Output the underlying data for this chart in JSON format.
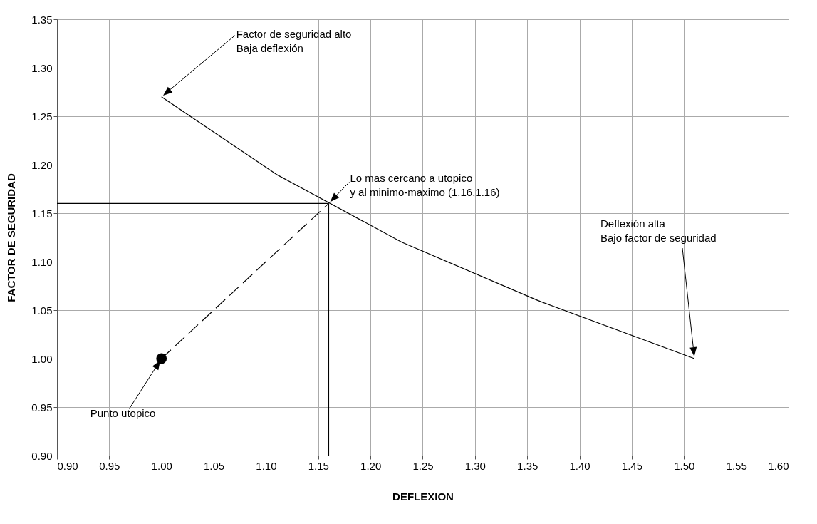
{
  "chart_data": {
    "type": "line",
    "xlabel": "DEFLEXION",
    "ylabel": "FACTOR DE SEGURIDAD",
    "xlim": [
      0.9,
      1.6
    ],
    "ylim": [
      0.9,
      1.35
    ],
    "xticks": [
      {
        "value": 0.9,
        "label": "0.90"
      },
      {
        "value": 0.95,
        "label": "0.95"
      },
      {
        "value": 1.0,
        "label": "1.00"
      },
      {
        "value": 1.05,
        "label": "1.05"
      },
      {
        "value": 1.1,
        "label": "1.10"
      },
      {
        "value": 1.15,
        "label": "1.15"
      },
      {
        "value": 1.2,
        "label": "1.20"
      },
      {
        "value": 1.25,
        "label": "1.25"
      },
      {
        "value": 1.3,
        "label": "1.30"
      },
      {
        "value": 1.35,
        "label": "1.35"
      },
      {
        "value": 1.4,
        "label": "1.40"
      },
      {
        "value": 1.45,
        "label": "1.45"
      },
      {
        "value": 1.5,
        "label": "1.50"
      },
      {
        "value": 1.55,
        "label": "1.55"
      },
      {
        "value": 1.6,
        "label": "1.60"
      }
    ],
    "yticks": [
      {
        "value": 0.9,
        "label": "0.90"
      },
      {
        "value": 0.95,
        "label": "0.95"
      },
      {
        "value": 1.0,
        "label": "1.00"
      },
      {
        "value": 1.05,
        "label": "1.05"
      },
      {
        "value": 1.1,
        "label": "1.10"
      },
      {
        "value": 1.15,
        "label": "1.15"
      },
      {
        "value": 1.2,
        "label": "1.20"
      },
      {
        "value": 1.25,
        "label": "1.25"
      },
      {
        "value": 1.3,
        "label": "1.30"
      },
      {
        "value": 1.35,
        "label": "1.35"
      }
    ],
    "grid": true,
    "series": [
      {
        "color": "#000000",
        "line_style": "solid",
        "x": [
          1.0,
          1.11,
          1.23,
          1.36,
          1.51
        ],
        "values": [
          1.27,
          1.19,
          1.12,
          1.06,
          1.0
        ]
      },
      {
        "color": "#000000",
        "line_style": "dashed",
        "x": [
          1.0,
          1.16
        ],
        "values": [
          1.0,
          1.16
        ]
      },
      {
        "color": "#000000",
        "line_style": "solid",
        "x": [
          0.9,
          1.16
        ],
        "values": [
          1.16,
          1.16
        ]
      },
      {
        "color": "#000000",
        "line_style": "solid",
        "x": [
          1.16,
          1.16
        ],
        "values": [
          0.9,
          1.16
        ]
      },
      {
        "type": "scatter",
        "color": "#000000",
        "marker": "circle",
        "x": [
          1.0
        ],
        "values": [
          1.0
        ]
      }
    ],
    "annotations": [
      "Factor de seguridad alto\nBaja deflexión",
      {
        "text": "Lo mas cercano a utopico\ny al minimo-maximo (1.16,1.16)",
        "x": 1.16,
        "y": 1.16
      },
      "Deflexión alta\nBajo factor de seguridad",
      "Punto utopico"
    ]
  }
}
